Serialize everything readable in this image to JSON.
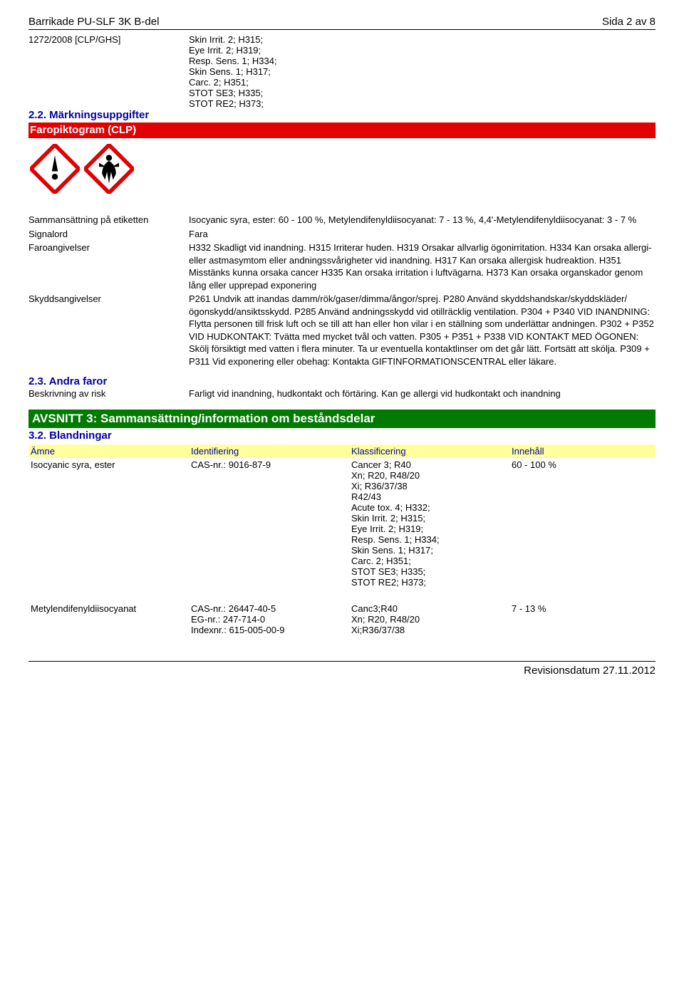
{
  "header": {
    "product": "Barrikade PU-SLF 3K B-del",
    "page": "Sida 2 av 8"
  },
  "regulation": {
    "code": "1272/2008 [CLP/GHS]",
    "classification_lines": [
      "Skin Irrit. 2; H315;",
      "Eye Irrit. 2; H319;",
      "Resp. Sens. 1; H334;",
      "Skin Sens. 1; H317;",
      "Carc. 2; H351;",
      "STOT SE3; H335;",
      "STOT RE2; H373;"
    ]
  },
  "section2_2": {
    "title": "2.2. Märkningsuppgifter",
    "faropiktogram_label": "Faropiktogram (CLP)"
  },
  "labels": {
    "sammansattning": "Sammansättning på etiketten",
    "signalord": "Signalord",
    "faroangivelser": "Faroangivelser",
    "skyddsangivelser": "Skyddsangivelser",
    "andra_faror": "2.3. Andra faror",
    "beskrivning": "Beskrivning av risk"
  },
  "values": {
    "sammansattning": "Isocyanic syra, ester: 60 - 100 %, Metylendifenyldiisocyanat: 7 - 13 %, 4,4'-Metylendifenyldiisocyanat: 3 - 7 %",
    "signalord": "Fara",
    "faroangivelser": "H332 Skadligt vid inandning. H315 Irriterar huden. H319 Orsakar allvarlig ögonirritation. H334 Kan orsaka allergi- eller astmasymtom eller andningssvårigheter vid inandning. H317 Kan orsaka allergisk hudreaktion. H351 Misstänks kunna orsaka cancer H335 Kan orsaka irritation i luftvägarna. H373 Kan orsaka organskador genom lång eller upprepad exponering",
    "skyddsangivelser": "P261 Undvik att inandas damm/rök/gaser/dimma/ångor/sprej. P280 Använd skyddshandskar/skyddskläder/ögonskydd/ansiktsskydd. P285 Använd andningsskydd vid otillräcklig ventilation. P304 + P340 VID INANDNING: Flytta personen till frisk luft och se till att han eller hon vilar i en ställning som underlättar andningen. P302 + P352 VID HUDKONTAKT: Tvätta med mycket tvål och vatten. P305 + P351 + P338 VID KONTAKT MED ÖGONEN: Skölj försiktigt med vatten i flera minuter. Ta ur eventuella kontaktlinser om det går lätt. Fortsätt att skölja. P309 + P311 Vid exponering eller obehag: Kontakta GIFTINFORMATIONSCENTRAL eller läkare.",
    "beskrivning": "Farligt vid inandning, hudkontakt och förtäring. Kan ge allergi vid hudkontakt och inandning"
  },
  "section3": {
    "title": "AVSNITT 3: Sammansättning/information om beståndsdelar",
    "sub": "3.2. Blandningar",
    "headers": {
      "c1": "Ämne",
      "c2": "Identifiering",
      "c3": "Klassificering",
      "c4": "Innehåll"
    },
    "rows": [
      {
        "amne": "Isocyanic syra, ester",
        "ident": "CAS-nr.: 9016-87-9",
        "klass_lines": [
          "Cancer 3; R40",
          "Xn; R20, R48/20",
          "Xi; R36/37/38",
          "R42/43",
          "Acute tox. 4; H332;",
          "Skin Irrit. 2; H315;",
          "Eye Irrit. 2; H319;",
          "Resp. Sens. 1; H334;",
          "Skin Sens. 1; H317;",
          "Carc. 2; H351;",
          "STOT SE3; H335;",
          "STOT RE2; H373;"
        ],
        "innehall": "60 - 100 %"
      },
      {
        "amne": "Metylendifenyldiisocyanat",
        "ident_lines": [
          "CAS-nr.: 26447-40-5",
          "EG-nr.: 247-714-0",
          "Indexnr.: 615-005-00-9"
        ],
        "klass_lines": [
          "Canc3;R40",
          "Xn; R20, R48/20",
          "Xi;R36/37/38"
        ],
        "innehall": "7 - 13 %"
      }
    ]
  },
  "footer": "Revisionsdatum 27.11.2012"
}
